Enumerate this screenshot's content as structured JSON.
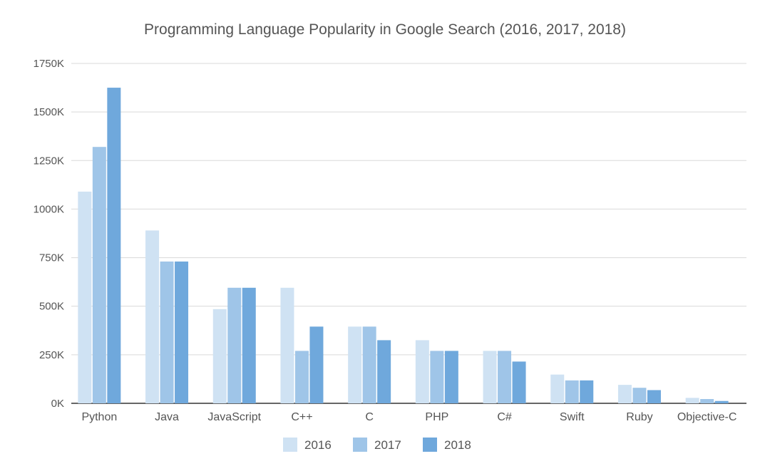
{
  "chart_data": {
    "type": "bar",
    "title": "Programming Language Popularity in Google Search (2016, 2017, 2018)",
    "categories": [
      "Python",
      "Java",
      "JavaScript",
      "C++",
      "C",
      "PHP",
      "C#",
      "Swift",
      "Ruby",
      "Objective-C"
    ],
    "series": [
      {
        "name": "2016",
        "color": "#cfe2f3",
        "values": [
          1090,
          890,
          485,
          595,
          395,
          325,
          270,
          148,
          95,
          28
        ]
      },
      {
        "name": "2017",
        "color": "#9fc5e8",
        "values": [
          1320,
          730,
          595,
          270,
          395,
          270,
          270,
          118,
          80,
          22
        ]
      },
      {
        "name": "2018",
        "color": "#6fa8dc",
        "values": [
          1625,
          730,
          595,
          395,
          325,
          270,
          215,
          118,
          68,
          12
        ]
      }
    ],
    "yticks": [
      "0K",
      "250K",
      "500K",
      "750K",
      "1000K",
      "1250K",
      "1500K",
      "1750K"
    ],
    "ylim": [
      0,
      1750
    ],
    "units": "K",
    "grid": true,
    "legend_position": "bottom"
  }
}
